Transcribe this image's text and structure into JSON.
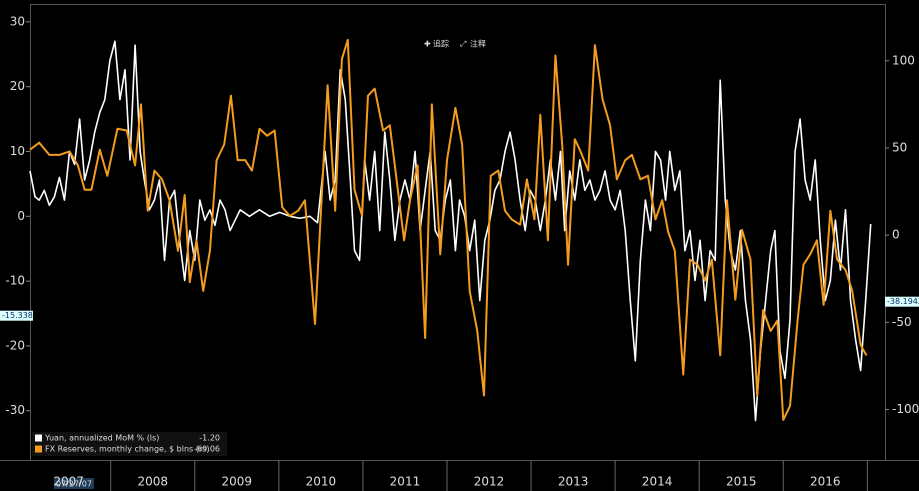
{
  "chart_data": {
    "type": "line",
    "toolbar": [
      "追踪",
      "注释"
    ],
    "start_date_label": "07/27/07",
    "xlim": [
      2007.04,
      2017.21
    ],
    "xticks": [
      {
        "value": 2007.5,
        "label": "2007"
      },
      {
        "value": 2008.5,
        "label": "2008"
      },
      {
        "value": 2009.5,
        "label": "2009"
      },
      {
        "value": 2010.5,
        "label": "2010"
      },
      {
        "value": 2011.5,
        "label": "2011"
      },
      {
        "value": 2012.5,
        "label": "2012"
      },
      {
        "value": 2013.5,
        "label": "2013"
      },
      {
        "value": 2014.5,
        "label": "2014"
      },
      {
        "value": 2015.5,
        "label": "2015"
      },
      {
        "value": 2016.5,
        "label": "2016"
      }
    ],
    "ylim": [
      -37.6,
      32.6
    ],
    "yticks": [
      30,
      20,
      10,
      0,
      -10,
      -20,
      -30
    ],
    "y2lim": [
      -129,
      132
    ],
    "y2ticks": [
      100,
      50,
      0,
      -50,
      -100
    ],
    "y_tags": [
      {
        "value": -15.338,
        "label": "-15.338"
      }
    ],
    "y2_tags": [
      {
        "value": -38.1943,
        "label": "-38.1943"
      }
    ],
    "series": [
      {
        "name": "Yuan, annualized MoM %  (ls)",
        "last_label": "-1.20",
        "color": "#ffffff",
        "axis": "y",
        "x": [
          2007.04,
          2007.1,
          2007.15,
          2007.21,
          2007.27,
          2007.33,
          2007.39,
          2007.45,
          2007.51,
          2007.57,
          2007.63,
          2007.69,
          2007.75,
          2007.81,
          2007.87,
          2007.93,
          2007.99,
          2008.05,
          2008.11,
          2008.17,
          2008.23,
          2008.29,
          2008.35,
          2008.4,
          2008.46,
          2008.52,
          2008.58,
          2008.64,
          2008.7,
          2008.76,
          2008.82,
          2008.88,
          2008.94,
          2009.0,
          2009.06,
          2009.12,
          2009.18,
          2009.24,
          2009.3,
          2009.36,
          2009.42,
          2009.54,
          2009.65,
          2009.77,
          2009.89,
          2010.01,
          2010.13,
          2010.25,
          2010.37,
          2010.46,
          2010.55,
          2010.61,
          2010.67,
          2010.73,
          2010.79,
          2010.85,
          2010.9,
          2010.96,
          2011.02,
          2011.08,
          2011.14,
          2011.2,
          2011.26,
          2011.32,
          2011.38,
          2011.44,
          2011.5,
          2011.56,
          2011.62,
          2011.68,
          2011.74,
          2011.8,
          2011.86,
          2011.92,
          2011.98,
          2012.04,
          2012.1,
          2012.15,
          2012.21,
          2012.27,
          2012.33,
          2012.39,
          2012.45,
          2012.51,
          2012.57,
          2012.63,
          2012.69,
          2012.75,
          2012.81,
          2012.87,
          2012.93,
          2012.99,
          2013.05,
          2013.11,
          2013.17,
          2013.23,
          2013.29,
          2013.35,
          2013.4,
          2013.46,
          2013.52,
          2013.58,
          2013.64,
          2013.7,
          2013.76,
          2013.82,
          2013.88,
          2013.94,
          2014.0,
          2014.06,
          2014.12,
          2014.18,
          2014.24,
          2014.3,
          2014.36,
          2014.42,
          2014.48,
          2014.54,
          2014.6,
          2014.65,
          2014.71,
          2014.77,
          2014.83,
          2014.89,
          2014.95,
          2015.01,
          2015.07,
          2015.13,
          2015.19,
          2015.25,
          2015.31,
          2015.37,
          2015.43,
          2015.49,
          2015.55,
          2015.61,
          2015.67,
          2015.73,
          2015.79,
          2015.85,
          2015.9,
          2015.96,
          2016.02,
          2016.08,
          2016.14,
          2016.2,
          2016.26,
          2016.32,
          2016.38,
          2016.44,
          2016.5,
          2016.56,
          2016.62,
          2016.68,
          2016.74,
          2016.8,
          2016.86,
          2016.92,
          2016.98,
          2017.04
        ],
        "values": [
          7,
          3,
          2.5,
          4,
          1.7,
          3,
          6,
          2.5,
          10,
          8,
          15,
          5.6,
          8.7,
          13,
          16,
          18,
          24,
          27,
          18,
          22.6,
          8.7,
          26.4,
          10,
          5.6,
          1,
          2.5,
          5.6,
          -6.8,
          2.5,
          4,
          -3.7,
          -9.9,
          -2.2,
          -6.8,
          2.5,
          -0.6,
          1,
          -1.4,
          2.5,
          1,
          -2.2,
          1,
          0,
          1,
          0,
          0.6,
          0,
          -0.3,
          0,
          -1,
          10,
          2.5,
          5.6,
          22.6,
          18,
          5.6,
          -5.3,
          -6.8,
          8.7,
          2.5,
          10,
          -2.2,
          13,
          5.6,
          -3.7,
          2.5,
          5.6,
          2.5,
          10,
          -2.2,
          4,
          10,
          -2.2,
          -3.7,
          2.5,
          5.6,
          -5.3,
          2.5,
          0,
          -5.3,
          -0.6,
          -13,
          -3.7,
          -0.6,
          4,
          5.6,
          10,
          13,
          8.7,
          2.5,
          -2.2,
          4,
          2.5,
          -2.2,
          2.5,
          8.7,
          2.5,
          10,
          -2.2,
          7,
          2.5,
          8.7,
          4,
          5.6,
          2.5,
          4,
          7,
          2.5,
          1,
          4,
          -2.2,
          -13,
          -22.3,
          -6.8,
          2.5,
          -2.2,
          10,
          8.7,
          2.5,
          10,
          4,
          7,
          -5.3,
          -2.2,
          -9.9,
          -3.7,
          -13,
          -5.3,
          -6.8,
          21,
          2.5,
          -5.3,
          -8.3,
          -2.2,
          -13,
          -19,
          -31.5,
          -20.7,
          -13,
          -5.3,
          -2.2,
          -20.7,
          -25,
          -16,
          10,
          15,
          5.6,
          2.5,
          8.7,
          -3.7,
          -13,
          -9.9,
          -0.6,
          -8.3,
          1,
          -13,
          -19,
          -23.8,
          -13,
          -1.2
        ]
      },
      {
        "name": "FX Reserves, monthly change, $ blns (rs)",
        "last_label": "-69.06",
        "color": "#f39c1e",
        "axis": "y2",
        "x": [
          2007.04,
          2007.15,
          2007.27,
          2007.39,
          2007.51,
          2007.61,
          2007.69,
          2007.77,
          2007.87,
          2007.96,
          2008.08,
          2008.19,
          2008.29,
          2008.36,
          2008.44,
          2008.52,
          2008.61,
          2008.7,
          2008.8,
          2008.88,
          2008.94,
          2009.02,
          2009.1,
          2009.18,
          2009.26,
          2009.35,
          2009.43,
          2009.51,
          2009.6,
          2009.68,
          2009.77,
          2009.86,
          2009.95,
          2010.04,
          2010.13,
          2010.23,
          2010.31,
          2010.43,
          2010.58,
          2010.67,
          2010.75,
          2010.82,
          2010.9,
          2010.99,
          2011.06,
          2011.14,
          2011.24,
          2011.32,
          2011.4,
          2011.49,
          2011.56,
          2011.65,
          2011.74,
          2011.82,
          2011.92,
          2012.0,
          2012.1,
          2012.18,
          2012.27,
          2012.36,
          2012.44,
          2012.52,
          2012.61,
          2012.69,
          2012.77,
          2012.87,
          2012.95,
          2013.04,
          2013.11,
          2013.2,
          2013.29,
          2013.37,
          2013.44,
          2013.52,
          2013.58,
          2013.68,
          2013.76,
          2013.85,
          2013.94,
          2014.02,
          2014.12,
          2014.2,
          2014.3,
          2014.39,
          2014.48,
          2014.56,
          2014.63,
          2014.71,
          2014.81,
          2014.89,
          2014.98,
          2015.07,
          2015.15,
          2015.25,
          2015.33,
          2015.43,
          2015.51,
          2015.61,
          2015.69,
          2015.76,
          2015.85,
          2015.93,
          2016.0,
          2016.08,
          2016.17,
          2016.24,
          2016.32,
          2016.4,
          2016.48,
          2016.56,
          2016.64,
          2016.74,
          2016.82,
          2016.92,
          2016.99
        ],
        "values": [
          49,
          53,
          46,
          46,
          48,
          40,
          26,
          26,
          49,
          34,
          61,
          60,
          40,
          75,
          14,
          37,
          32,
          20,
          -9,
          23,
          -27,
          -3,
          -32,
          -9,
          43,
          52,
          80,
          43,
          43,
          37,
          61,
          57,
          60,
          16,
          11,
          14,
          20,
          -51,
          86,
          14,
          101,
          112,
          26,
          11,
          80,
          84,
          60,
          63,
          32,
          -3,
          20,
          40,
          -59,
          75,
          -11,
          43,
          73,
          52,
          -32,
          -55,
          -92,
          34,
          37,
          14,
          9,
          6,
          32,
          9,
          69,
          -3,
          103,
          52,
          -17,
          55,
          49,
          37,
          109,
          78,
          63,
          32,
          43,
          46,
          32,
          34,
          9,
          20,
          2,
          -9,
          -80,
          -14,
          -17,
          -26,
          -14,
          -69,
          20,
          -37,
          3,
          -14,
          -92,
          -43,
          -55,
          -49,
          -106,
          -98,
          -49,
          -17,
          -11,
          -3,
          -40,
          14,
          -14,
          -20,
          -32,
          -63,
          -69.06
        ]
      }
    ]
  }
}
